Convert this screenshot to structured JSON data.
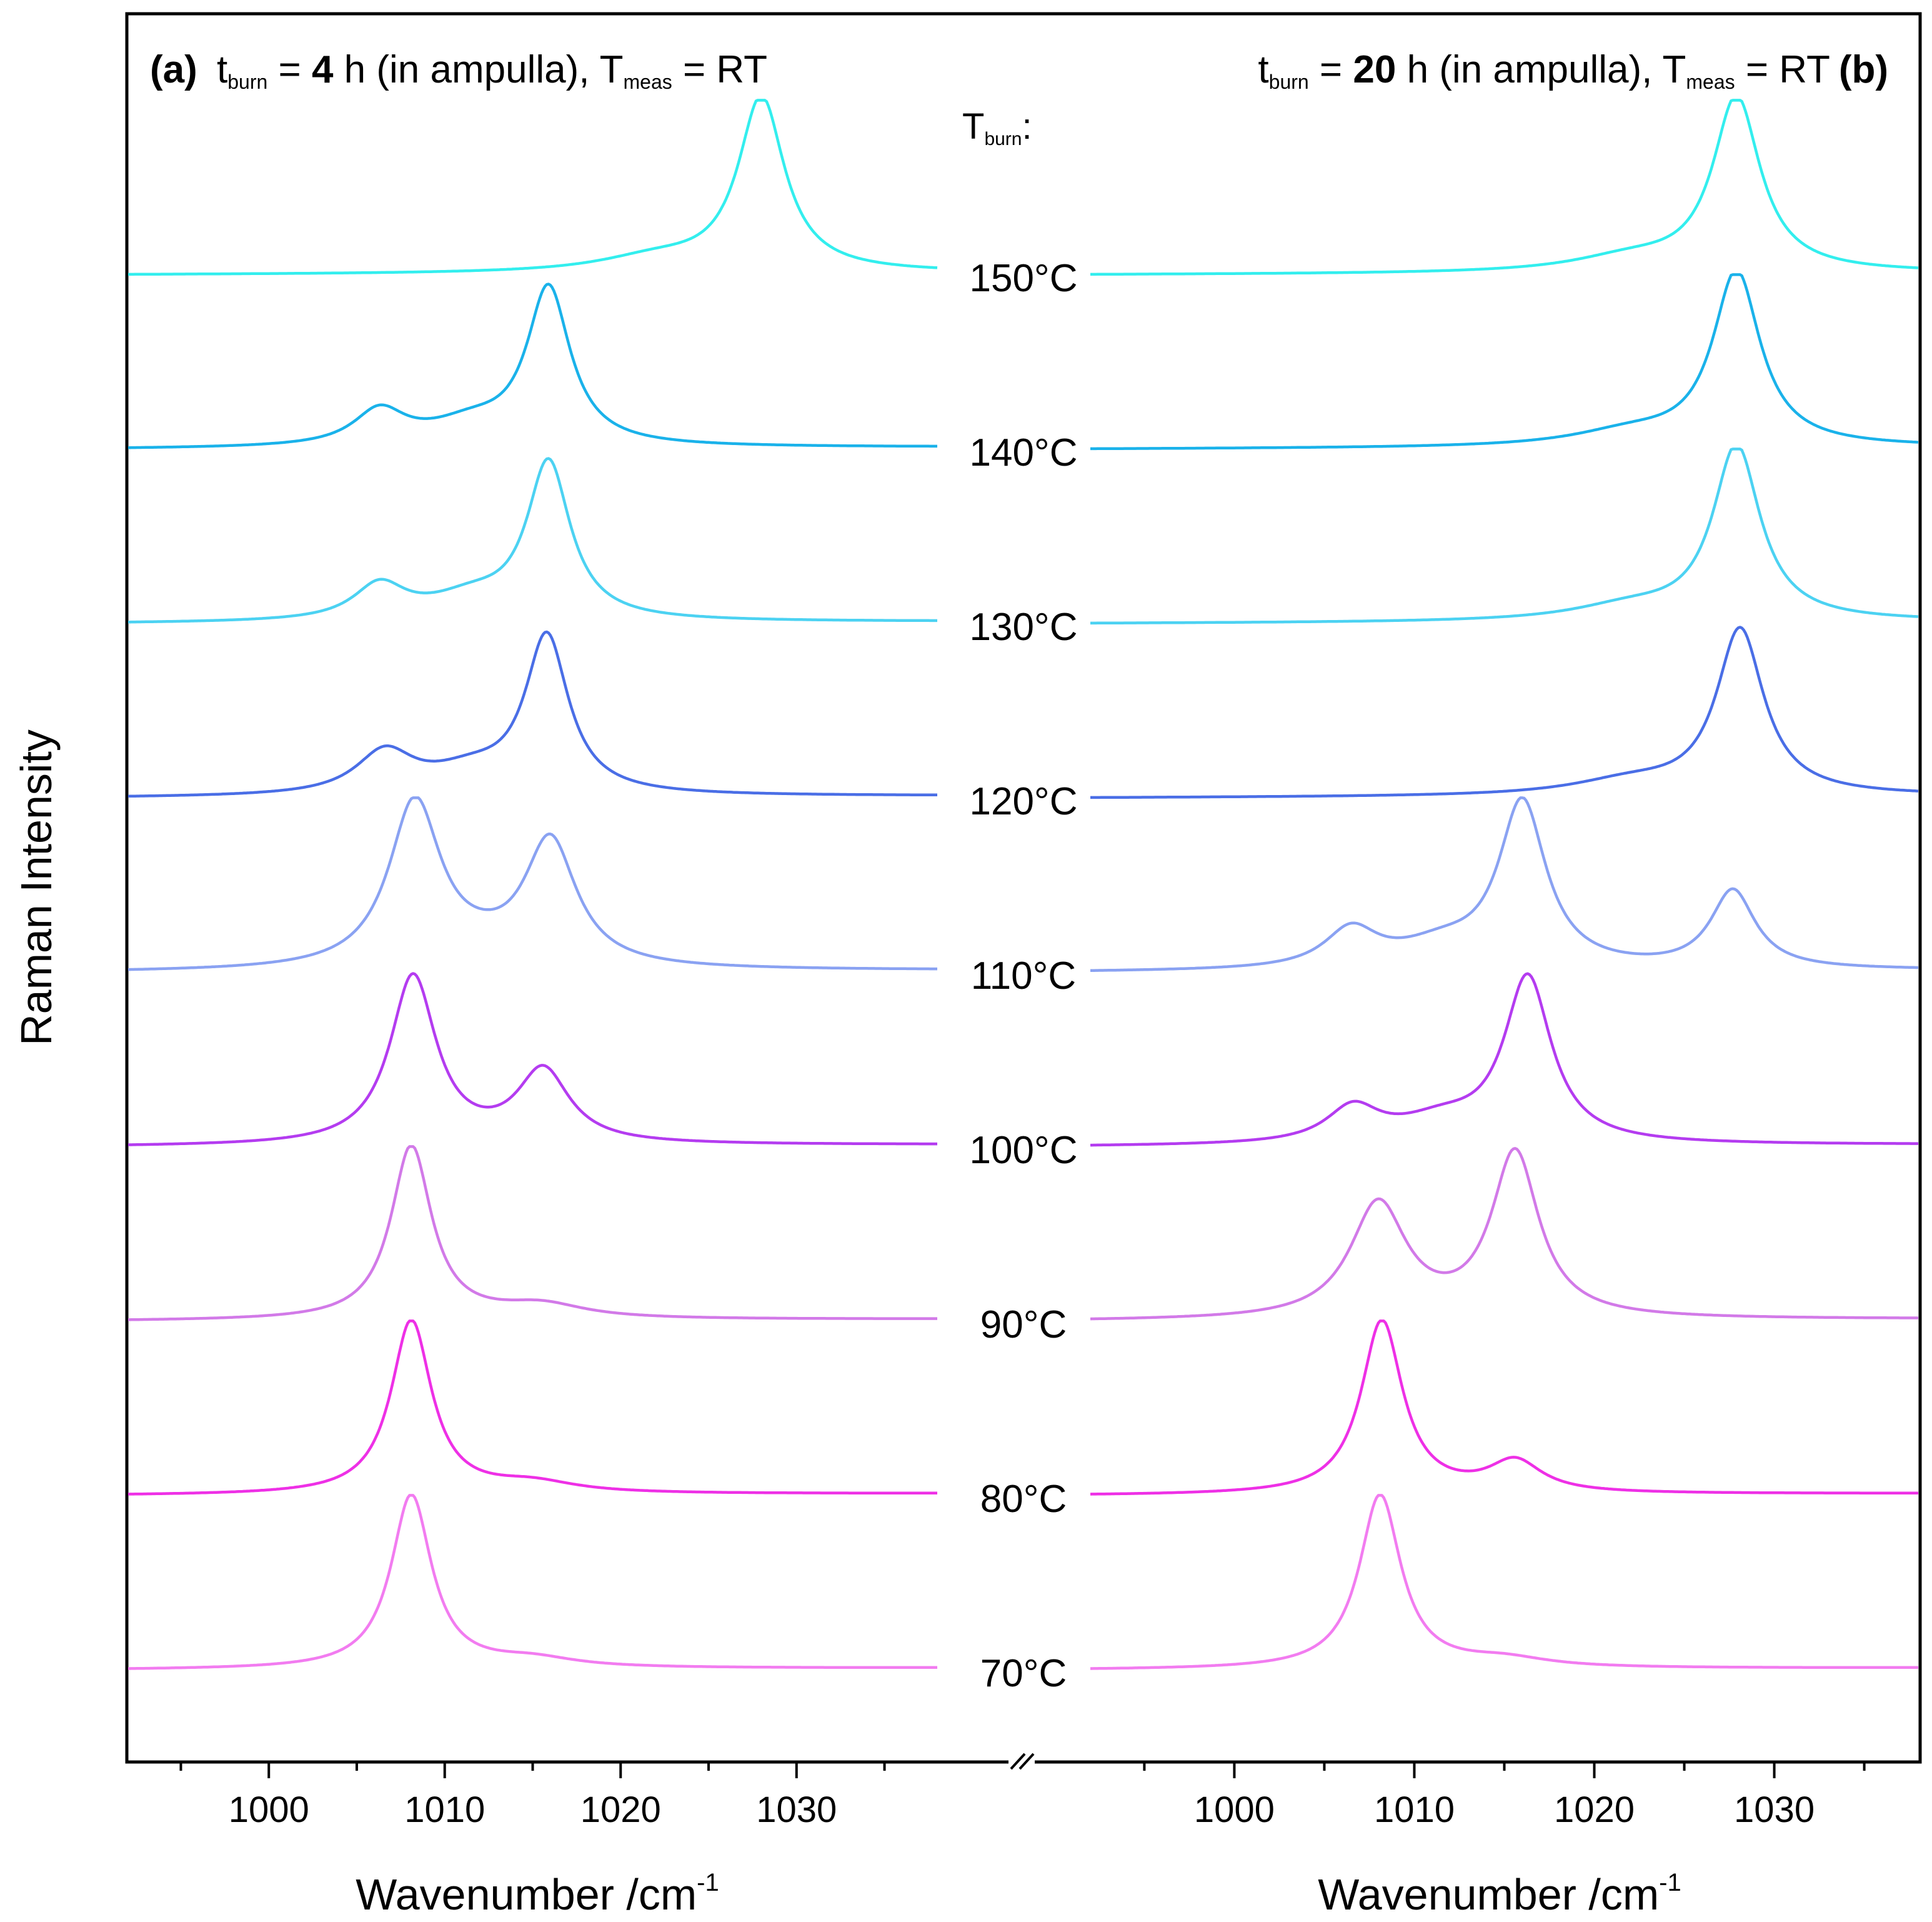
{
  "chart_data": {
    "type": "line",
    "ylabel": "Raman Intensity",
    "temperature_header": {
      "main": "T",
      "sub": "burn",
      "suffix": ":"
    },
    "temperature_labels": [
      "150°C",
      "140°C",
      "130°C",
      "120°C",
      "110°C",
      "100°C",
      "90°C",
      "80°C",
      "70°C"
    ],
    "series_colors": [
      "#33eeee",
      "#1ab2ea",
      "#4cd2f2",
      "#4a6ee6",
      "#8aa2f2",
      "#b43cf0",
      "#d27ae8",
      "#ee30e6",
      "#f27cf0"
    ],
    "panels": [
      {
        "id": "a",
        "title": {
          "letter": "(a)",
          "t": "t",
          "t_sub": "burn",
          "eq1": " = ",
          "value": "4",
          "rest": " h (in ampulla), ",
          "T": "T",
          "T_sub": "meas",
          "eq2": " = RT"
        },
        "xlabel": {
          "text": "Wavenumber /cm",
          "sup": "-1"
        },
        "xlim": [
          992,
          1038
        ],
        "xticks": [
          1000,
          1010,
          1020,
          1030
        ],
        "xtick_labels": [
          "1000",
          "1010",
          "1020",
          "1030"
        ],
        "series": [
          {
            "name": "150°C",
            "peaks": [
              [
                1028.0,
                1.0,
                1.6
              ],
              [
                1022,
                0.08,
                4
              ]
            ]
          },
          {
            "name": "140°C",
            "peaks": [
              [
                1015.9,
                0.9,
                1.5
              ],
              [
                1006.3,
                0.2,
                1.8
              ],
              [
                1011.5,
                0.12,
                3
              ]
            ]
          },
          {
            "name": "130°C",
            "peaks": [
              [
                1015.9,
                0.9,
                1.5
              ],
              [
                1006.3,
                0.2,
                1.8
              ],
              [
                1011.5,
                0.12,
                3
              ]
            ]
          },
          {
            "name": "120°C",
            "peaks": [
              [
                1015.8,
                0.9,
                1.5
              ],
              [
                1006.6,
                0.24,
                2.0
              ],
              [
                1011.5,
                0.12,
                3
              ]
            ]
          },
          {
            "name": "110°C",
            "peaks": [
              [
                1008.3,
                0.95,
                1.8
              ],
              [
                1016.0,
                0.72,
                1.8
              ],
              [
                1012.0,
                0.06,
                3
              ]
            ]
          },
          {
            "name": "100°C",
            "peaks": [
              [
                1008.2,
                0.97,
                1.6
              ],
              [
                1015.6,
                0.42,
                1.8
              ]
            ]
          },
          {
            "name": "90°C",
            "peaks": [
              [
                1008.1,
                1.0,
                1.4
              ],
              [
                1015.5,
                0.08,
                3.0
              ]
            ]
          },
          {
            "name": "80°C",
            "peaks": [
              [
                1008.1,
                1.0,
                1.4
              ],
              [
                1015.0,
                0.06,
                3.0
              ]
            ]
          },
          {
            "name": "70°C",
            "peaks": [
              [
                1008.1,
                1.0,
                1.4
              ],
              [
                1015.0,
                0.05,
                3.0
              ]
            ]
          }
        ]
      },
      {
        "id": "b",
        "title": {
          "letter": "(b)",
          "t": "t",
          "t_sub": "burn",
          "eq1": " = ",
          "value": "20",
          "rest": " h (in ampulla), ",
          "T": "T",
          "T_sub": "meas",
          "eq2": " = RT"
        },
        "xlabel": {
          "text": "Wavenumber /cm",
          "sup": "-1"
        },
        "xlim": [
          992,
          1038
        ],
        "xticks": [
          1000,
          1010,
          1020,
          1030
        ],
        "xtick_labels": [
          "1000",
          "1010",
          "1020",
          "1030"
        ],
        "series": [
          {
            "name": "150°C",
            "peaks": [
              [
                1027.9,
                1.0,
                1.6
              ],
              [
                1022,
                0.08,
                4
              ]
            ]
          },
          {
            "name": "140°C",
            "peaks": [
              [
                1027.9,
                1.0,
                1.6
              ],
              [
                1022,
                0.08,
                4
              ]
            ]
          },
          {
            "name": "130°C",
            "peaks": [
              [
                1027.9,
                1.0,
                1.6
              ],
              [
                1022,
                0.08,
                4
              ]
            ]
          },
          {
            "name": "120°C",
            "peaks": [
              [
                1028.1,
                0.95,
                1.6
              ],
              [
                1022,
                0.08,
                4
              ]
            ]
          },
          {
            "name": "110°C",
            "peaks": [
              [
                1016.0,
                0.95,
                1.6
              ],
              [
                1027.7,
                0.45,
                1.5
              ],
              [
                1006.5,
                0.22,
                1.8
              ],
              [
                1011.5,
                0.12,
                3
              ]
            ]
          },
          {
            "name": "100°C",
            "peaks": [
              [
                1016.3,
                0.95,
                1.6
              ],
              [
                1006.6,
                0.2,
                1.8
              ],
              [
                1011.5,
                0.12,
                3
              ]
            ]
          },
          {
            "name": "90°C",
            "peaks": [
              [
                1015.6,
                0.95,
                1.6
              ],
              [
                1008.0,
                0.66,
                1.9
              ]
            ]
          },
          {
            "name": "80°C",
            "peaks": [
              [
                1008.2,
                1.0,
                1.4
              ],
              [
                1015.6,
                0.18,
                1.8
              ]
            ]
          },
          {
            "name": "70°C",
            "peaks": [
              [
                1008.1,
                1.0,
                1.4
              ],
              [
                1015.0,
                0.05,
                3.0
              ]
            ]
          }
        ]
      }
    ]
  }
}
